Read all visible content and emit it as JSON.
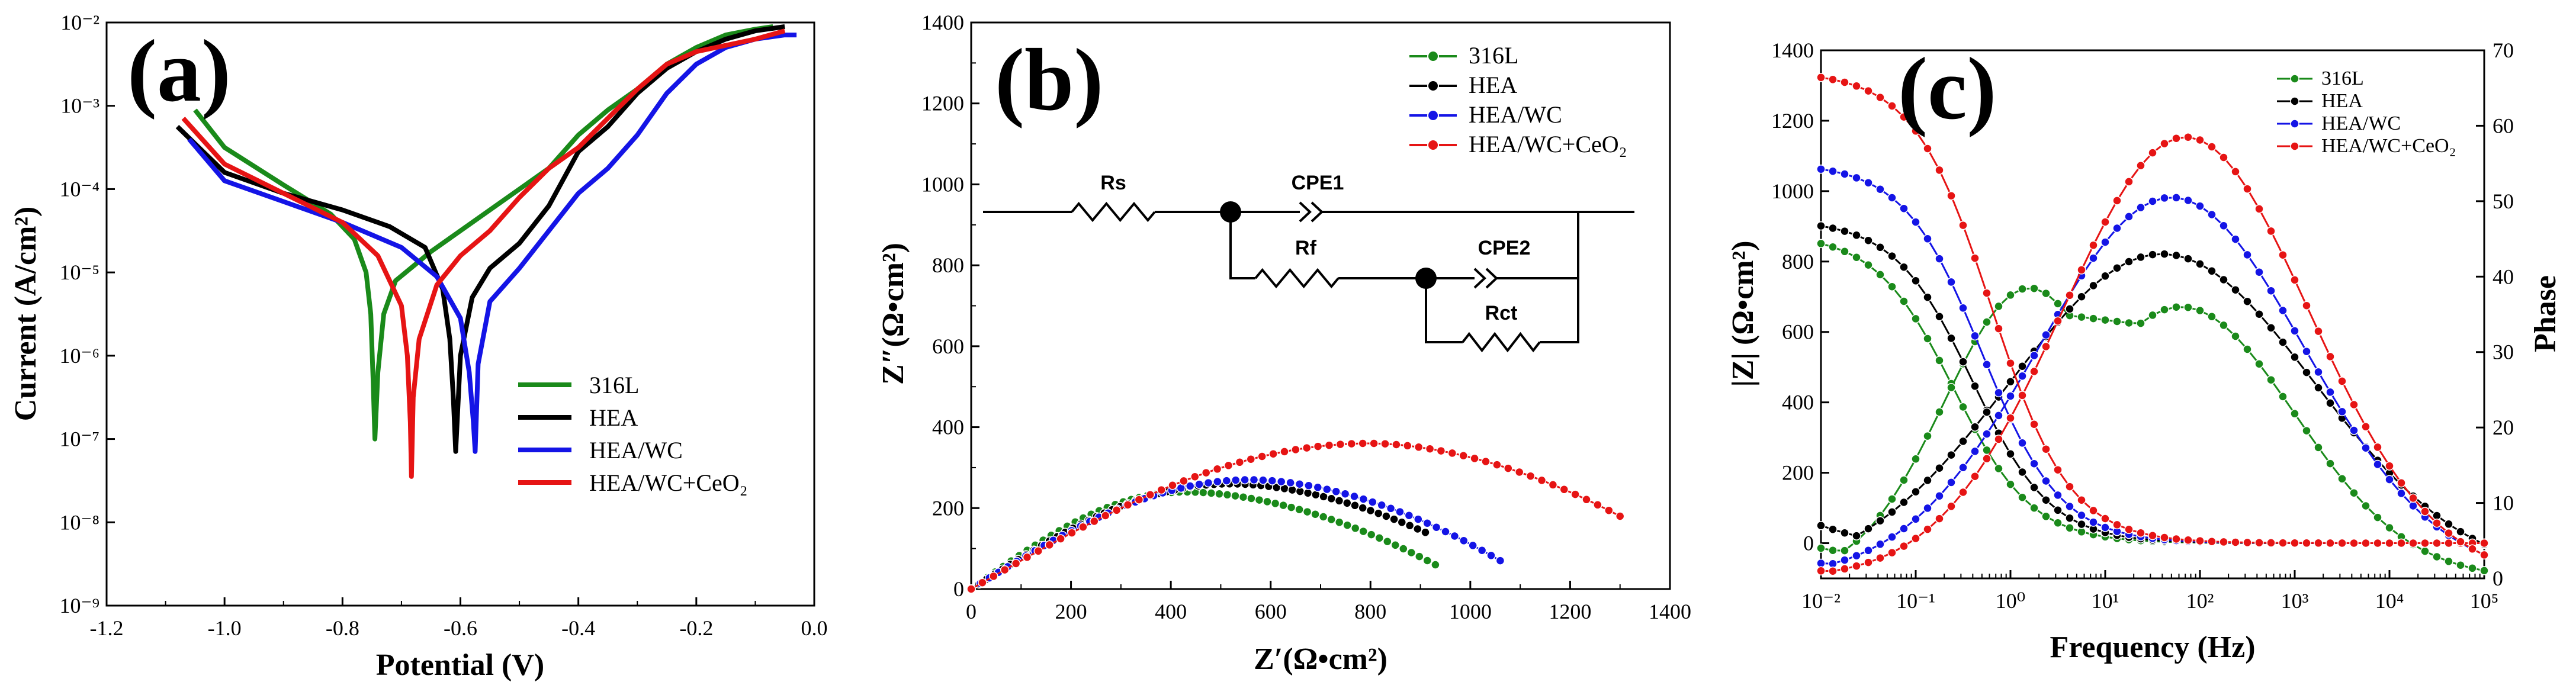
{
  "chart_data": [
    {
      "panel": "(a)",
      "type": "line",
      "xlabel": "Potential (V)",
      "ylabel": "Current (A/cm²)",
      "xlim": [
        -1.2,
        0.0
      ],
      "ylim_log10": [
        -9,
        -2
      ],
      "x_ticks": [
        "-1.2",
        "-1.0",
        "-0.8",
        "-0.6",
        "-0.4",
        "-0.2",
        "0.0"
      ],
      "y_ticks": [
        "10⁻⁹",
        "10⁻⁸",
        "10⁻⁷",
        "10⁻⁶",
        "10⁻⁵",
        "10⁻⁴",
        "10⁻³",
        "10⁻²"
      ],
      "legend": [
        "316L",
        "HEA",
        "HEA/WC",
        "HEA/WC+CeO₂"
      ],
      "series": [
        {
          "name": "316L",
          "color": "#1a8a1a",
          "x": [
            -1.05,
            -1.0,
            -0.9,
            -0.82,
            -0.78,
            -0.76,
            -0.752,
            -0.748,
            -0.745,
            -0.74,
            -0.73,
            -0.71,
            -0.65,
            -0.55,
            -0.45,
            -0.4,
            -0.35,
            -0.3,
            -0.25,
            -0.2,
            -0.15,
            -0.1,
            -0.07
          ],
          "log10y": [
            -3.05,
            -3.5,
            -3.95,
            -4.3,
            -4.6,
            -5.0,
            -5.5,
            -6.3,
            -7.0,
            -6.2,
            -5.5,
            -5.1,
            -4.75,
            -4.25,
            -3.75,
            -3.35,
            -3.05,
            -2.8,
            -2.5,
            -2.3,
            -2.15,
            -2.08,
            -2.05
          ]
        },
        {
          "name": "HEA",
          "color": "#000000",
          "x": [
            -1.08,
            -1.0,
            -0.9,
            -0.8,
            -0.72,
            -0.66,
            -0.63,
            -0.618,
            -0.612,
            -0.608,
            -0.6,
            -0.58,
            -0.55,
            -0.5,
            -0.45,
            -0.4,
            -0.35,
            -0.3,
            -0.25,
            -0.2,
            -0.15,
            -0.1,
            -0.05
          ],
          "log10y": [
            -3.25,
            -3.8,
            -4.05,
            -4.25,
            -4.45,
            -4.7,
            -5.2,
            -5.8,
            -6.5,
            -7.15,
            -6.0,
            -5.3,
            -4.95,
            -4.65,
            -4.2,
            -3.55,
            -3.25,
            -2.85,
            -2.55,
            -2.35,
            -2.2,
            -2.1,
            -2.05
          ]
        },
        {
          "name": "HEA/WC",
          "color": "#1414e6",
          "x": [
            -1.06,
            -1.0,
            -0.9,
            -0.8,
            -0.7,
            -0.64,
            -0.6,
            -0.585,
            -0.578,
            -0.575,
            -0.57,
            -0.55,
            -0.5,
            -0.45,
            -0.4,
            -0.35,
            -0.3,
            -0.25,
            -0.2,
            -0.15,
            -0.1,
            -0.05,
            -0.03
          ],
          "log10y": [
            -3.4,
            -3.9,
            -4.15,
            -4.4,
            -4.7,
            -5.05,
            -5.55,
            -6.2,
            -6.8,
            -7.15,
            -6.1,
            -5.35,
            -4.95,
            -4.5,
            -4.05,
            -3.75,
            -3.35,
            -2.85,
            -2.5,
            -2.3,
            -2.2,
            -2.15,
            -2.15
          ]
        },
        {
          "name": "HEA/WC+CeO₂",
          "color": "#e61414",
          "x": [
            -1.07,
            -1.0,
            -0.9,
            -0.8,
            -0.74,
            -0.7,
            -0.69,
            -0.685,
            -0.683,
            -0.68,
            -0.67,
            -0.64,
            -0.6,
            -0.55,
            -0.5,
            -0.45,
            -0.4,
            -0.35,
            -0.3,
            -0.25,
            -0.2,
            -0.1,
            -0.05
          ],
          "log10y": [
            -3.15,
            -3.7,
            -4.05,
            -4.4,
            -4.8,
            -5.4,
            -6.0,
            -6.8,
            -7.45,
            -6.5,
            -5.8,
            -5.15,
            -4.8,
            -4.5,
            -4.1,
            -3.75,
            -3.5,
            -3.15,
            -2.8,
            -2.5,
            -2.35,
            -2.2,
            -2.1
          ]
        }
      ]
    },
    {
      "panel": "(b)",
      "type": "scatter",
      "xlabel": "Z′(Ω•cm²)",
      "ylabel": "Z″(Ω•cm²)",
      "xlim": [
        0,
        1400
      ],
      "ylim": [
        0,
        1400
      ],
      "x_ticks": [
        "0",
        "200",
        "400",
        "600",
        "800",
        "1000",
        "1200",
        "1400"
      ],
      "y_ticks": [
        "0",
        "200",
        "400",
        "600",
        "800",
        "1000",
        "1200",
        "1400"
      ],
      "legend": [
        "316L",
        "HEA",
        "HEA/WC",
        "HEA/WC+CeO₂"
      ],
      "series": [
        {
          "name": "316L",
          "color": "#1a8a1a",
          "arc": {
            "z_end": 930,
            "peak_x": 430,
            "peak_y": 240,
            "end_y": 60
          }
        },
        {
          "name": "HEA",
          "color": "#000000",
          "arc": {
            "z_end": 910,
            "peak_x": 520,
            "peak_y": 260,
            "end_y": 140
          }
        },
        {
          "name": "HEA/WC",
          "color": "#1414e6",
          "arc": {
            "z_end": 1060,
            "peak_x": 560,
            "peak_y": 270,
            "end_y": 70
          }
        },
        {
          "name": "HEA/WC+CeO₂",
          "color": "#e61414",
          "arc": {
            "z_end": 1300,
            "peak_x": 800,
            "peak_y": 360,
            "end_y": 180
          }
        }
      ],
      "circuit_labels": [
        "Rs",
        "CPE1",
        "Rf",
        "CPE2",
        "Rct"
      ]
    },
    {
      "panel": "(c)",
      "type": "scatter",
      "xlabel": "Frequency (Hz)",
      "ylabel": "|Z| (Ω•cm²)",
      "y2label": "Phase",
      "xlim_log10": [
        -2,
        5
      ],
      "ylim": [
        -100,
        1400
      ],
      "y2lim": [
        0,
        70
      ],
      "x_ticks": [
        "10⁻²",
        "10⁻¹",
        "10⁰",
        "10¹",
        "10²",
        "10³",
        "10⁴",
        "10⁵"
      ],
      "y_ticks": [
        "0",
        "200",
        "400",
        "600",
        "800",
        "1000",
        "1200",
        "1400"
      ],
      "y2_ticks": [
        "0",
        "10",
        "20",
        "30",
        "40",
        "50",
        "60",
        "70"
      ],
      "legend": [
        "316L",
        "HEA",
        "HEA/WC",
        "HEA/WC+CeO₂"
      ],
      "series": [
        {
          "name": "316L",
          "color": "#1a8a1a",
          "Z_low": 880,
          "Z_high": 0,
          "Z_corner_log10f": -0.6,
          "phase_peaks": [
            {
              "log10f": 0.2,
              "deg": 38.5,
              "width": 0.9
            },
            {
              "log10f": 1.8,
              "deg": 36,
              "width": 1.2
            }
          ],
          "phase_low": 4
        },
        {
          "name": "HEA",
          "color": "#000000",
          "Z_low": 920,
          "Z_high": 0,
          "Z_corner_log10f": -0.4,
          "phase_peaks": [
            {
              "log10f": 1.6,
              "deg": 43,
              "width": 1.6
            }
          ],
          "phase_low": 7
        },
        {
          "name": "HEA/WC",
          "color": "#1414e6",
          "Z_low": 1080,
          "Z_high": 0,
          "Z_corner_log10f": -0.3,
          "phase_peaks": [
            {
              "log10f": 1.7,
              "deg": 50.5,
              "width": 1.4
            }
          ],
          "phase_low": 2
        },
        {
          "name": "HEA/WC+CeO₂",
          "color": "#e61414",
          "Z_low": 1340,
          "Z_high": 0,
          "Z_corner_log10f": -0.2,
          "phase_peaks": [
            {
              "log10f": 1.85,
              "deg": 58.5,
              "width": 1.3
            }
          ],
          "phase_low": 1
        }
      ]
    }
  ]
}
